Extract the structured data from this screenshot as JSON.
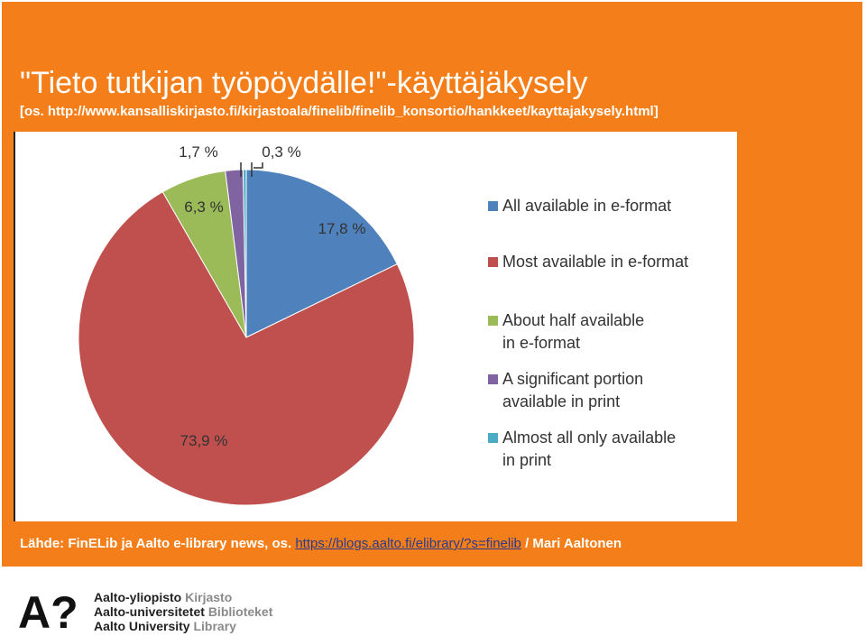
{
  "slide": {
    "title": "\"Tieto tutkijan työpöydälle!\"-käyttäjäkysely",
    "subtitle": "[os. http://www.kansalliskirjasto.fi/kirjastoala/finelib/finelib_konsortio/hankkeet/kayttajakysely.html]",
    "source_prefix": "Lähde: FinELib  ja Aalto e-library news, os. ",
    "source_link": "https://blogs.aalto.fi/elibrary/?s=finelib",
    "source_suffix": " / Mari Aaltonen"
  },
  "chart_data": {
    "type": "pie",
    "title": "",
    "slices": [
      {
        "label": "All available in e-format",
        "value": 17.8,
        "label_text": "17,8 %",
        "color": "#4f81bd"
      },
      {
        "label": "Most available in e-format",
        "value": 73.9,
        "label_text": "73,9 %",
        "color": "#c0504d"
      },
      {
        "label": "About half available in e-format",
        "value": 6.3,
        "label_text": "6,3 %",
        "color": "#9bbb59"
      },
      {
        "label": "A significant portion available in print",
        "value": 1.7,
        "label_text": "1,7 %",
        "color": "#8064a2"
      },
      {
        "label": "Almost all only available in print",
        "value": 0.3,
        "label_text": "0,3 %",
        "color": "#4bacc6"
      }
    ],
    "legend": {
      "placement": "right",
      "entries": [
        [
          "All available in e-format"
        ],
        [
          "Most available in e-format"
        ],
        [
          "About half available",
          "in e-format"
        ],
        [
          "A significant portion",
          "available in print"
        ],
        [
          "Almost all only available",
          "in print"
        ]
      ]
    }
  },
  "logo": {
    "mark": "A?",
    "lines": [
      {
        "black": "Aalto-yliopisto",
        "gray": "Kirjasto"
      },
      {
        "black": "Aalto-universitetet",
        "gray": "Biblioteket"
      },
      {
        "black": "Aalto University",
        "gray": "Library"
      }
    ]
  }
}
